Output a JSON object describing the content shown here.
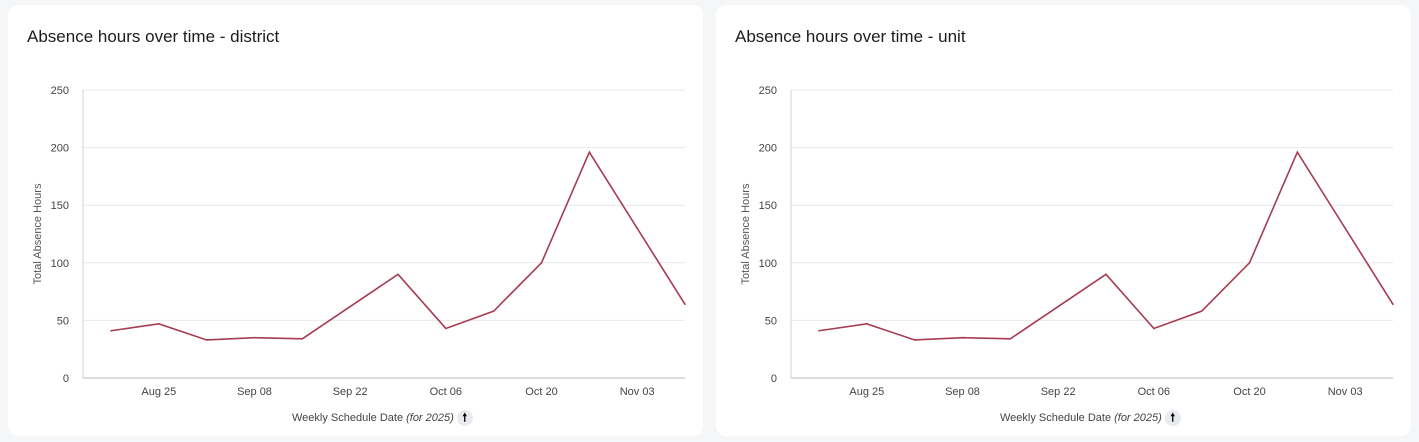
{
  "colors": {
    "line": "#a63b52",
    "grid": "#e8e8e8",
    "axis": "#d0d0d0"
  },
  "x_title": "Weekly Schedule Date",
  "x_title_suffix": "(for 2025)",
  "sort_icon": "🠕",
  "chart_data": [
    {
      "type": "line",
      "title": "Absence hours over time - district",
      "xlabel": "Weekly Schedule Date (for 2025)",
      "ylabel": "Total Absence Hours",
      "ylim": [
        0,
        250
      ],
      "yticks": [
        "0",
        "50",
        "100",
        "150",
        "200",
        "250"
      ],
      "x": [
        "Aug 18",
        "Aug 25",
        "Sep 01",
        "Sep 08",
        "Sep 15",
        "Sep 22",
        "Sep 29",
        "Oct 06",
        "Oct 13",
        "Oct 20",
        "Oct 27",
        "Nov 03",
        "Nov 10"
      ],
      "xticks": [
        "Aug 25",
        "Sep 08",
        "Sep 22",
        "Oct 06",
        "Oct 20",
        "Nov 03"
      ],
      "values": [
        41,
        47,
        33,
        35,
        34,
        62,
        90,
        43,
        58,
        100,
        196,
        130,
        64
      ],
      "grid": true
    },
    {
      "type": "line",
      "title": "Absence hours over time - unit",
      "xlabel": "Weekly Schedule Date (for 2025)",
      "ylabel": "Total Absence Hours",
      "ylim": [
        0,
        250
      ],
      "yticks": [
        "0",
        "50",
        "100",
        "150",
        "200",
        "250"
      ],
      "x": [
        "Aug 18",
        "Aug 25",
        "Sep 01",
        "Sep 08",
        "Sep 15",
        "Sep 22",
        "Sep 29",
        "Oct 06",
        "Oct 13",
        "Oct 20",
        "Oct 27",
        "Nov 03",
        "Nov 10"
      ],
      "xticks": [
        "Aug 25",
        "Sep 08",
        "Sep 22",
        "Oct 06",
        "Oct 20",
        "Nov 03"
      ],
      "values": [
        41,
        47,
        33,
        35,
        34,
        62,
        90,
        43,
        58,
        100,
        196,
        130,
        64
      ],
      "grid": true
    }
  ]
}
